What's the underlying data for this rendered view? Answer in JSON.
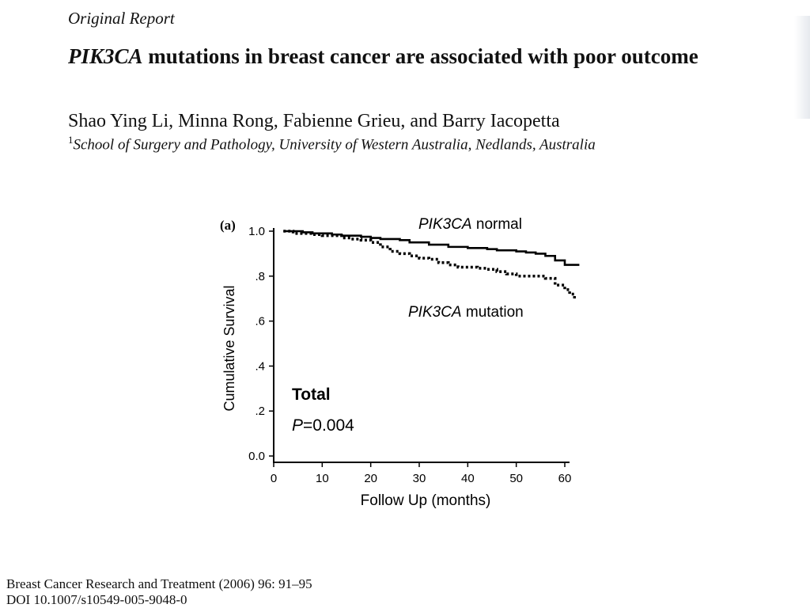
{
  "header": {
    "report_label": "Original Report",
    "title_gene": "PIK3CA",
    "title_rest": " mutations in breast cancer are associated with poor outcome",
    "authors": "Shao Ying Li, Minna Rong, Fabienne Grieu, and Barry Iacopetta",
    "affiliation_sup": "1",
    "affiliation": "School of Surgery and Pathology, University of Western Australia, Nedlands, Australia"
  },
  "chart_data": {
    "type": "line",
    "panel_label": "(a)",
    "xlabel": "Follow Up (months)",
    "ylabel": "Cumulative Survival",
    "xlim": [
      0,
      62
    ],
    "ylim": [
      0,
      1.0
    ],
    "x_ticks": [
      "0",
      "10",
      "20",
      "30",
      "40",
      "50",
      "60"
    ],
    "x_tick_values": [
      0,
      10,
      20,
      30,
      40,
      50,
      60
    ],
    "y_ticks": [
      "0.0",
      ".2",
      ".4",
      ".6",
      ".8",
      "1.0"
    ],
    "y_tick_values": [
      0,
      0.2,
      0.4,
      0.6,
      0.8,
      1.0
    ],
    "annotation_title": "Total",
    "annotation_p_symbol": "P",
    "annotation_p_value": "=0.004",
    "series": [
      {
        "name_italic": "PIK3CA",
        "name_rest": " normal",
        "style": "solid",
        "x": [
          2,
          6,
          8,
          12,
          14,
          18,
          20,
          22,
          26,
          28,
          32,
          36,
          40,
          44,
          46,
          50,
          52,
          54,
          56,
          58,
          60,
          63
        ],
        "y": [
          1.0,
          0.995,
          0.99,
          0.985,
          0.98,
          0.975,
          0.97,
          0.965,
          0.96,
          0.95,
          0.94,
          0.93,
          0.925,
          0.92,
          0.915,
          0.91,
          0.905,
          0.9,
          0.89,
          0.87,
          0.85,
          0.85
        ]
      },
      {
        "name_italic": "PIK3CA",
        "name_rest": " mutation",
        "style": "dotted",
        "x": [
          2,
          4,
          8,
          10,
          14,
          16,
          18,
          20,
          22,
          24,
          26,
          28,
          30,
          32,
          34,
          36,
          38,
          42,
          44,
          46,
          48,
          50,
          56,
          58,
          60,
          61,
          62
        ],
        "y": [
          1.0,
          0.99,
          0.985,
          0.98,
          0.97,
          0.965,
          0.96,
          0.95,
          0.93,
          0.91,
          0.9,
          0.89,
          0.88,
          0.875,
          0.86,
          0.85,
          0.84,
          0.835,
          0.83,
          0.82,
          0.81,
          0.8,
          0.79,
          0.76,
          0.74,
          0.72,
          0.7
        ]
      }
    ]
  },
  "footer": {
    "citation": "Breast Cancer Research and Treatment (2006) 96: 91–95",
    "doi": "DOI 10.1007/s10549-005-9048-0"
  }
}
